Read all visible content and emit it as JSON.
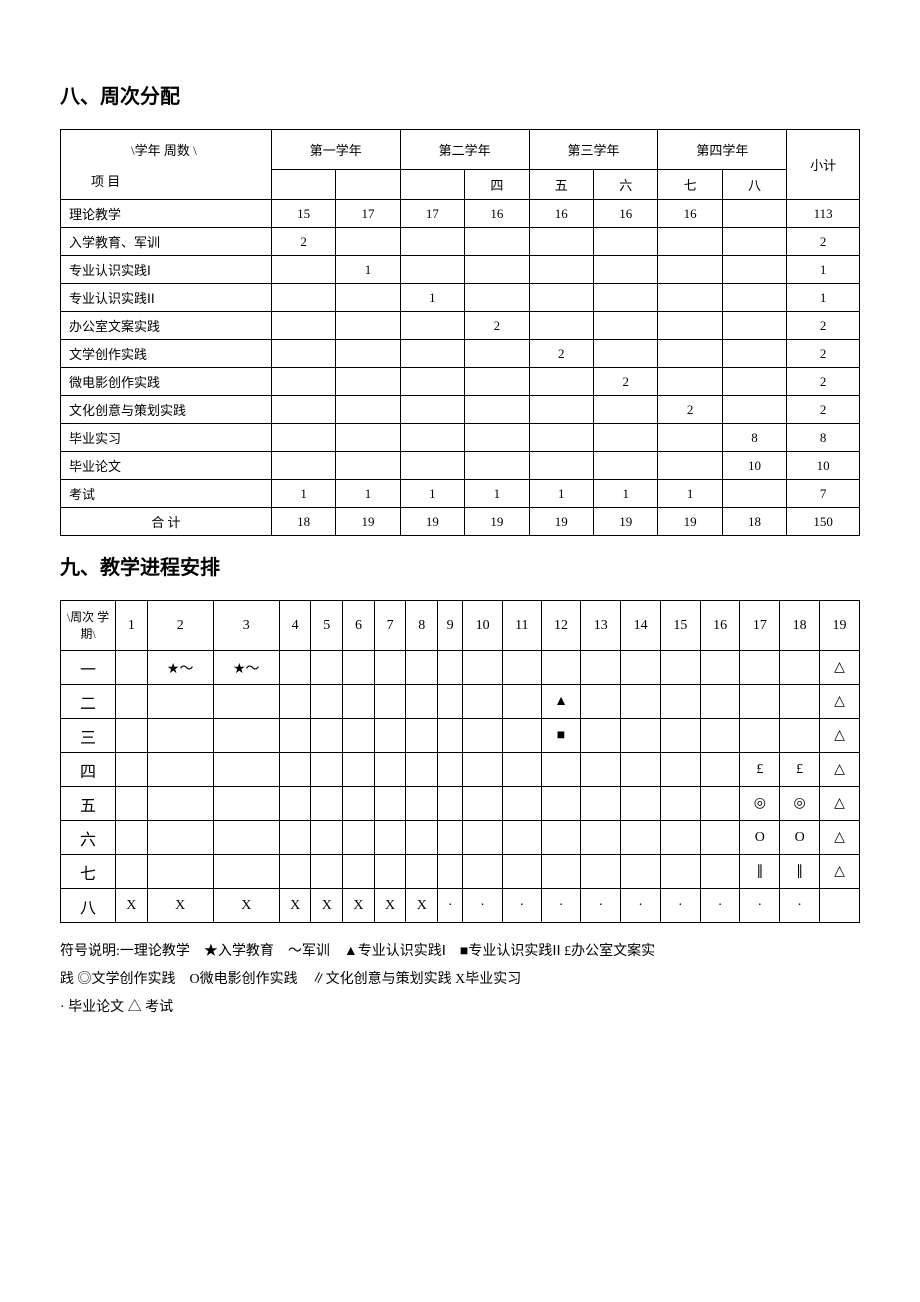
{
  "section8": {
    "title": "八、周次分配",
    "corner_top": "\\学年 周数 \\",
    "corner_bottom": "项 目",
    "year_headers": [
      "第一学年",
      "第二学年",
      "第三学年",
      "第四学年"
    ],
    "subtotal": "小计",
    "sem_labels": [
      "",
      "",
      "",
      "四",
      "五",
      "六",
      "七",
      "八"
    ],
    "rows": [
      {
        "label": "理论教学",
        "v": [
          "15",
          "17",
          "17",
          "16",
          "16",
          "16",
          "16",
          ""
        ],
        "sum": "113"
      },
      {
        "label": "入学教育、军训",
        "v": [
          "2",
          "",
          "",
          "",
          "",
          "",
          "",
          ""
        ],
        "sum": "2"
      },
      {
        "label": "专业认识实践Ⅰ",
        "v": [
          "",
          "1",
          "",
          "",
          "",
          "",
          "",
          ""
        ],
        "sum": "1"
      },
      {
        "label": "专业认识实践ⅠⅠ",
        "v": [
          "",
          "",
          "1",
          "",
          "",
          "",
          "",
          ""
        ],
        "sum": "1"
      },
      {
        "label": "办公室文案实践",
        "v": [
          "",
          "",
          "",
          "2",
          "",
          "",
          "",
          ""
        ],
        "sum": "2"
      },
      {
        "label": "文学创作实践",
        "v": [
          "",
          "",
          "",
          "",
          "2",
          "",
          "",
          ""
        ],
        "sum": "2"
      },
      {
        "label": "微电影创作实践",
        "v": [
          "",
          "",
          "",
          "",
          "",
          "2",
          "",
          ""
        ],
        "sum": "2"
      },
      {
        "label": "文化创意与策划实践",
        "v": [
          "",
          "",
          "",
          "",
          "",
          "",
          "2",
          ""
        ],
        "sum": "2"
      },
      {
        "label": "毕业实习",
        "v": [
          "",
          "",
          "",
          "",
          "",
          "",
          "",
          "8"
        ],
        "sum": "8"
      },
      {
        "label": "毕业论文",
        "v": [
          "",
          "",
          "",
          "",
          "",
          "",
          "",
          "10"
        ],
        "sum": "10"
      },
      {
        "label": "考试",
        "v": [
          "1",
          "1",
          "1",
          "1",
          "1",
          "1",
          "1",
          ""
        ],
        "sum": "7"
      },
      {
        "label": "合    计",
        "v": [
          "18",
          "19",
          "19",
          "19",
          "19",
          "19",
          "19",
          "18"
        ],
        "sum": "150",
        "center": true
      }
    ]
  },
  "section9": {
    "title": "九、教学进程安排",
    "corner": "\\周次 学期\\",
    "weeks": [
      "1",
      "2",
      "3",
      "4",
      "5",
      "6",
      "7",
      "8",
      "9",
      "10",
      "11",
      "12",
      "13",
      "14",
      "15",
      "16",
      "17",
      "18",
      "19"
    ],
    "rows": [
      {
        "label": "一",
        "cells": [
          "",
          "★〜",
          "★〜",
          "",
          "",
          "",
          "",
          "",
          "",
          "",
          "",
          "",
          "",
          "",
          "",
          "",
          "",
          "",
          "△"
        ]
      },
      {
        "label": "二",
        "cells": [
          "",
          "",
          "",
          "",
          "",
          "",
          "",
          "",
          "",
          "",
          "",
          "▲",
          "",
          "",
          "",
          "",
          "",
          "",
          "△"
        ]
      },
      {
        "label": "三",
        "cells": [
          "",
          "",
          "",
          "",
          "",
          "",
          "",
          "",
          "",
          "",
          "",
          "■",
          "",
          "",
          "",
          "",
          "",
          "",
          "△"
        ]
      },
      {
        "label": "四",
        "cells": [
          "",
          "",
          "",
          "",
          "",
          "",
          "",
          "",
          "",
          "",
          "",
          "",
          "",
          "",
          "",
          "",
          "£",
          "£",
          "△"
        ]
      },
      {
        "label": "五",
        "cells": [
          "",
          "",
          "",
          "",
          "",
          "",
          "",
          "",
          "",
          "",
          "",
          "",
          "",
          "",
          "",
          "",
          "◎",
          "◎",
          "△"
        ]
      },
      {
        "label": "六",
        "cells": [
          "",
          "",
          "",
          "",
          "",
          "",
          "",
          "",
          "",
          "",
          "",
          "",
          "",
          "",
          "",
          "",
          "Ο",
          "Ο",
          "△"
        ]
      },
      {
        "label": "七",
        "cells": [
          "",
          "",
          "",
          "",
          "",
          "",
          "",
          "",
          "",
          "",
          "",
          "",
          "",
          "",
          "",
          "",
          "∥",
          "∥",
          "△"
        ]
      },
      {
        "label": "八",
        "cells": [
          "X",
          "X",
          "X",
          "X",
          "X",
          "X",
          "X",
          "X",
          "·",
          "·",
          "·",
          "·",
          "·",
          "·",
          "·",
          "·",
          "·",
          "·",
          ""
        ]
      }
    ],
    "legend_lines": [
      "符号说明:一理论教学　★入学教育　〜军训　▲专业认识实践Ⅰ　■专业认识实践ⅠⅠ £办公室文案实",
      "践 ◎文学创作实践　Ο微电影创作实践　∥文化创意与策划实践 X毕业实习",
      "· 毕业论文 △ 考试"
    ]
  }
}
